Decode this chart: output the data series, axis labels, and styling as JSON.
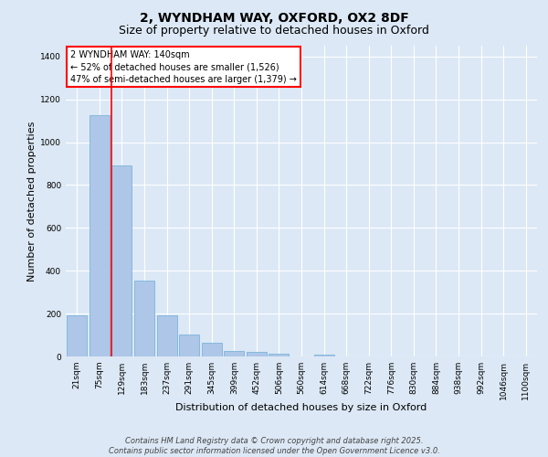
{
  "title_line1": "2, WYNDHAM WAY, OXFORD, OX2 8DF",
  "title_line2": "Size of property relative to detached houses in Oxford",
  "xlabel": "Distribution of detached houses by size in Oxford",
  "ylabel": "Number of detached properties",
  "categories": [
    "21sqm",
    "75sqm",
    "129sqm",
    "183sqm",
    "237sqm",
    "291sqm",
    "345sqm",
    "399sqm",
    "452sqm",
    "506sqm",
    "560sqm",
    "614sqm",
    "668sqm",
    "722sqm",
    "776sqm",
    "830sqm",
    "884sqm",
    "938sqm",
    "992sqm",
    "1046sqm",
    "1100sqm"
  ],
  "values": [
    193,
    1126,
    893,
    352,
    193,
    102,
    62,
    25,
    22,
    14,
    0,
    8,
    0,
    0,
    0,
    0,
    0,
    0,
    0,
    0,
    0
  ],
  "bar_color": "#aec6e8",
  "bar_edgecolor": "#6baed6",
  "vline_color": "red",
  "vline_index": 2,
  "annotation_text": "2 WYNDHAM WAY: 140sqm\n← 52% of detached houses are smaller (1,526)\n47% of semi-detached houses are larger (1,379) →",
  "annotation_box_color": "red",
  "annotation_bg": "white",
  "ylim": [
    0,
    1450
  ],
  "yticks": [
    0,
    200,
    400,
    600,
    800,
    1000,
    1200,
    1400
  ],
  "background_color": "#dce8f5",
  "plot_bg_color": "#dce8f5",
  "grid_color": "white",
  "footer_line1": "Contains HM Land Registry data © Crown copyright and database right 2025.",
  "footer_line2": "Contains public sector information licensed under the Open Government Licence v3.0.",
  "title_fontsize": 10,
  "subtitle_fontsize": 9,
  "axis_label_fontsize": 8,
  "tick_fontsize": 6.5,
  "annotation_fontsize": 7,
  "footer_fontsize": 6
}
